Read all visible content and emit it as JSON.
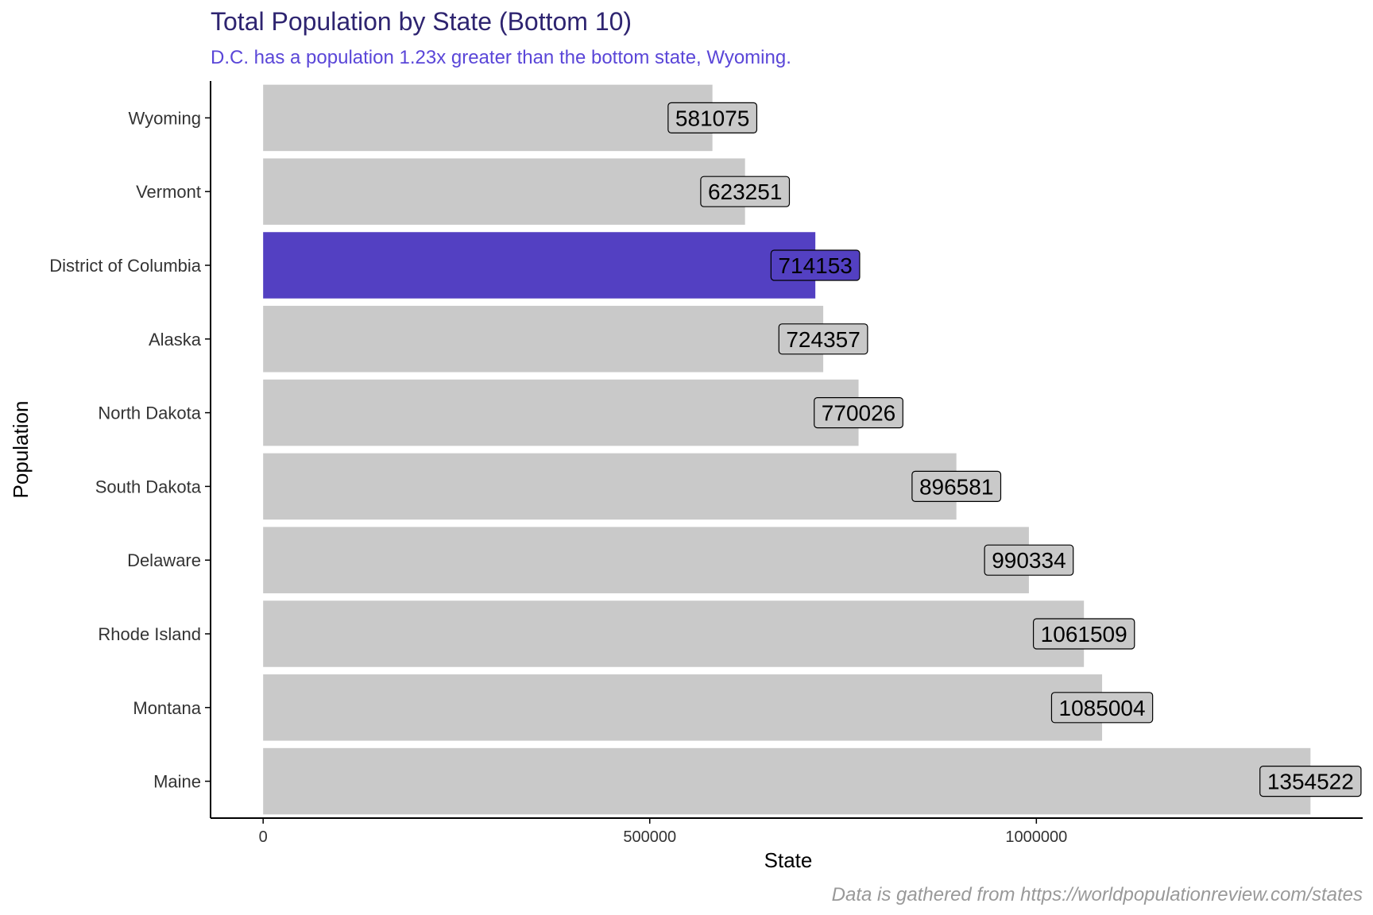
{
  "chart_data": {
    "type": "bar",
    "orientation": "horizontal",
    "title": "Total Population by State (Bottom 10)",
    "subtitle": "D.C. has a population 1.23x greater than the bottom state, Wyoming.",
    "caption": "Data is gathered from https://worldpopulationreview.com/states",
    "xlabel": "State",
    "ylabel": "Population",
    "categories": [
      "Wyoming",
      "Vermont",
      "District of Columbia",
      "Alaska",
      "North Dakota",
      "South Dakota",
      "Delaware",
      "Rhode Island",
      "Montana",
      "Maine"
    ],
    "values": [
      581075,
      623251,
      714153,
      724357,
      770026,
      896581,
      990334,
      1061509,
      1085004,
      1354522
    ],
    "highlight": "District of Columbia",
    "xlim": [
      -68000,
      1422000
    ],
    "xticks": [
      0,
      500000,
      1000000
    ],
    "xtick_labels": [
      "0",
      "500000",
      "1000000"
    ],
    "grid": false,
    "legend": "none",
    "colors": {
      "bar": "#c9c9c9",
      "highlight": "#5340c2",
      "title": "#2e2470",
      "subtitle": "#5a46d8",
      "caption": "#999999",
      "axis": "#000000"
    }
  }
}
